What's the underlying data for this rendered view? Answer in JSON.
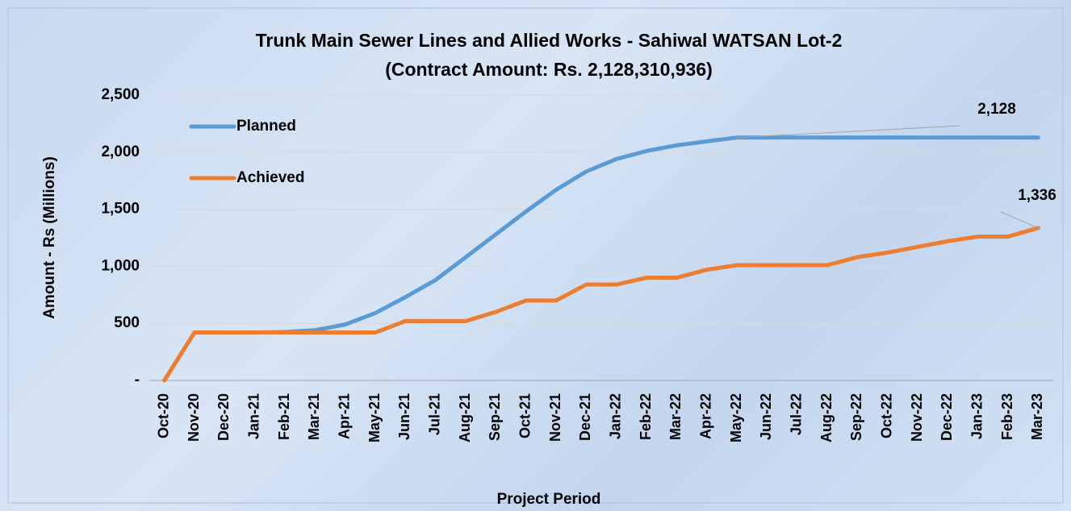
{
  "chart_data": {
    "type": "line",
    "title": "Trunk Main Sewer Lines and Allied Works - Sahiwal WATSAN Lot-2",
    "subtitle": "(Contract Amount: Rs. 2,128,310,936)",
    "y_label": "Amount - Rs (Millions)",
    "x_label": "Project Period",
    "categories": [
      "Oct-20",
      "Nov-20",
      "Dec-20",
      "Jan-21",
      "Feb-21",
      "Mar-21",
      "Apr-21",
      "May-21",
      "Jun-21",
      "Jul-21",
      "Aug-21",
      "Sep-21",
      "Oct-21",
      "Nov-21",
      "Dec-21",
      "Jan-22",
      "Feb-22",
      "Mar-22",
      "Apr-22",
      "May-22",
      "Jun-22",
      "Jul-22",
      "Aug-22",
      "Sep-22",
      "Oct-22",
      "Nov-22",
      "Dec-22",
      "Jan-23",
      "Feb-23",
      "Mar-23"
    ],
    "series": [
      {
        "name": "Planned",
        "color": "#5b9bd5",
        "values": [
          0,
          420,
          420,
          420,
          425,
          440,
          490,
          590,
          730,
          880,
          1080,
          1280,
          1480,
          1670,
          1830,
          1940,
          2010,
          2060,
          2095,
          2128,
          2128,
          2128,
          2128,
          2128,
          2128,
          2128,
          2128,
          2128,
          2128,
          2128
        ],
        "value_labels": [
          null,
          null,
          null,
          null,
          null,
          null,
          null,
          null,
          null,
          null,
          null,
          null,
          null,
          null,
          null,
          null,
          null,
          null,
          null,
          "2,128",
          null,
          null,
          null,
          null,
          null,
          null,
          null,
          null,
          null,
          null
        ]
      },
      {
        "name": "Achieved",
        "color": "#ed7d31",
        "values": [
          0,
          420,
          420,
          420,
          420,
          420,
          420,
          420,
          520,
          520,
          520,
          600,
          700,
          700,
          840,
          840,
          900,
          900,
          970,
          1010,
          1010,
          1010,
          1010,
          1080,
          1120,
          1170,
          1220,
          1260,
          1260,
          1336
        ],
        "value_labels": [
          null,
          null,
          null,
          null,
          null,
          null,
          null,
          null,
          null,
          null,
          null,
          null,
          null,
          null,
          null,
          null,
          null,
          null,
          null,
          null,
          null,
          null,
          null,
          null,
          null,
          null,
          null,
          null,
          null,
          "1,336"
        ]
      }
    ],
    "ylim": [
      0,
      2500
    ],
    "yticks": [
      {
        "value": 0,
        "label": "-"
      },
      500,
      {
        "value": 1000,
        "label": "1,000"
      },
      {
        "value": 1500,
        "label": "1,500"
      },
      {
        "value": 2000,
        "label": "2,000"
      },
      {
        "value": 2500,
        "label": "2,500"
      }
    ],
    "grid": true,
    "legend": "upper left"
  }
}
